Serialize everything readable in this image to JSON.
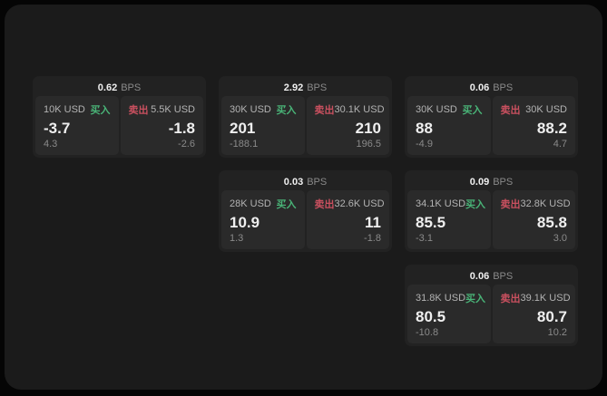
{
  "labels": {
    "bps_unit": "BPS",
    "buy": "买入",
    "sell": "卖出"
  },
  "colors": {
    "green": "#49b377",
    "red": "#c9505f",
    "white": "#efefef",
    "gray": "#8a8a8a",
    "label-gray": "#b3b3b3",
    "page-bg": "#1b1b1b",
    "card-bg": "#222222",
    "cell-bg": "#2a2a2a",
    "outer-bg": "#050505"
  },
  "cards": [
    {
      "row": 1,
      "col": 1,
      "bps": "0.62",
      "buy": {
        "size": "10K USD",
        "price": "-3.7",
        "delta": "4.3"
      },
      "sell": {
        "size": "5.5K USD",
        "price": "-1.8",
        "delta": "-2.6"
      }
    },
    {
      "row": 1,
      "col": 2,
      "bps": "2.92",
      "buy": {
        "size": "30K USD",
        "price": "201",
        "delta": "-188.1"
      },
      "sell": {
        "size": "30.1K USD",
        "price": "210",
        "delta": "196.5"
      }
    },
    {
      "row": 1,
      "col": 3,
      "bps": "0.06",
      "buy": {
        "size": "30K USD",
        "price": "88",
        "delta": "-4.9"
      },
      "sell": {
        "size": "30K USD",
        "price": "88.2",
        "delta": "4.7"
      }
    },
    {
      "row": 2,
      "col": 2,
      "bps": "0.03",
      "buy": {
        "size": "28K USD",
        "price": "10.9",
        "delta": "1.3"
      },
      "sell": {
        "size": "32.6K USD",
        "price": "11",
        "delta": "-1.8"
      }
    },
    {
      "row": 2,
      "col": 3,
      "bps": "0.09",
      "buy": {
        "size": "34.1K USD",
        "price": "85.5",
        "delta": "-3.1"
      },
      "sell": {
        "size": "32.8K USD",
        "price": "85.8",
        "delta": "3.0"
      }
    },
    {
      "row": 3,
      "col": 3,
      "bps": "0.06",
      "buy": {
        "size": "31.8K USD",
        "price": "80.5",
        "delta": "-10.8"
      },
      "sell": {
        "size": "39.1K USD",
        "price": "80.7",
        "delta": "10.2"
      }
    }
  ]
}
